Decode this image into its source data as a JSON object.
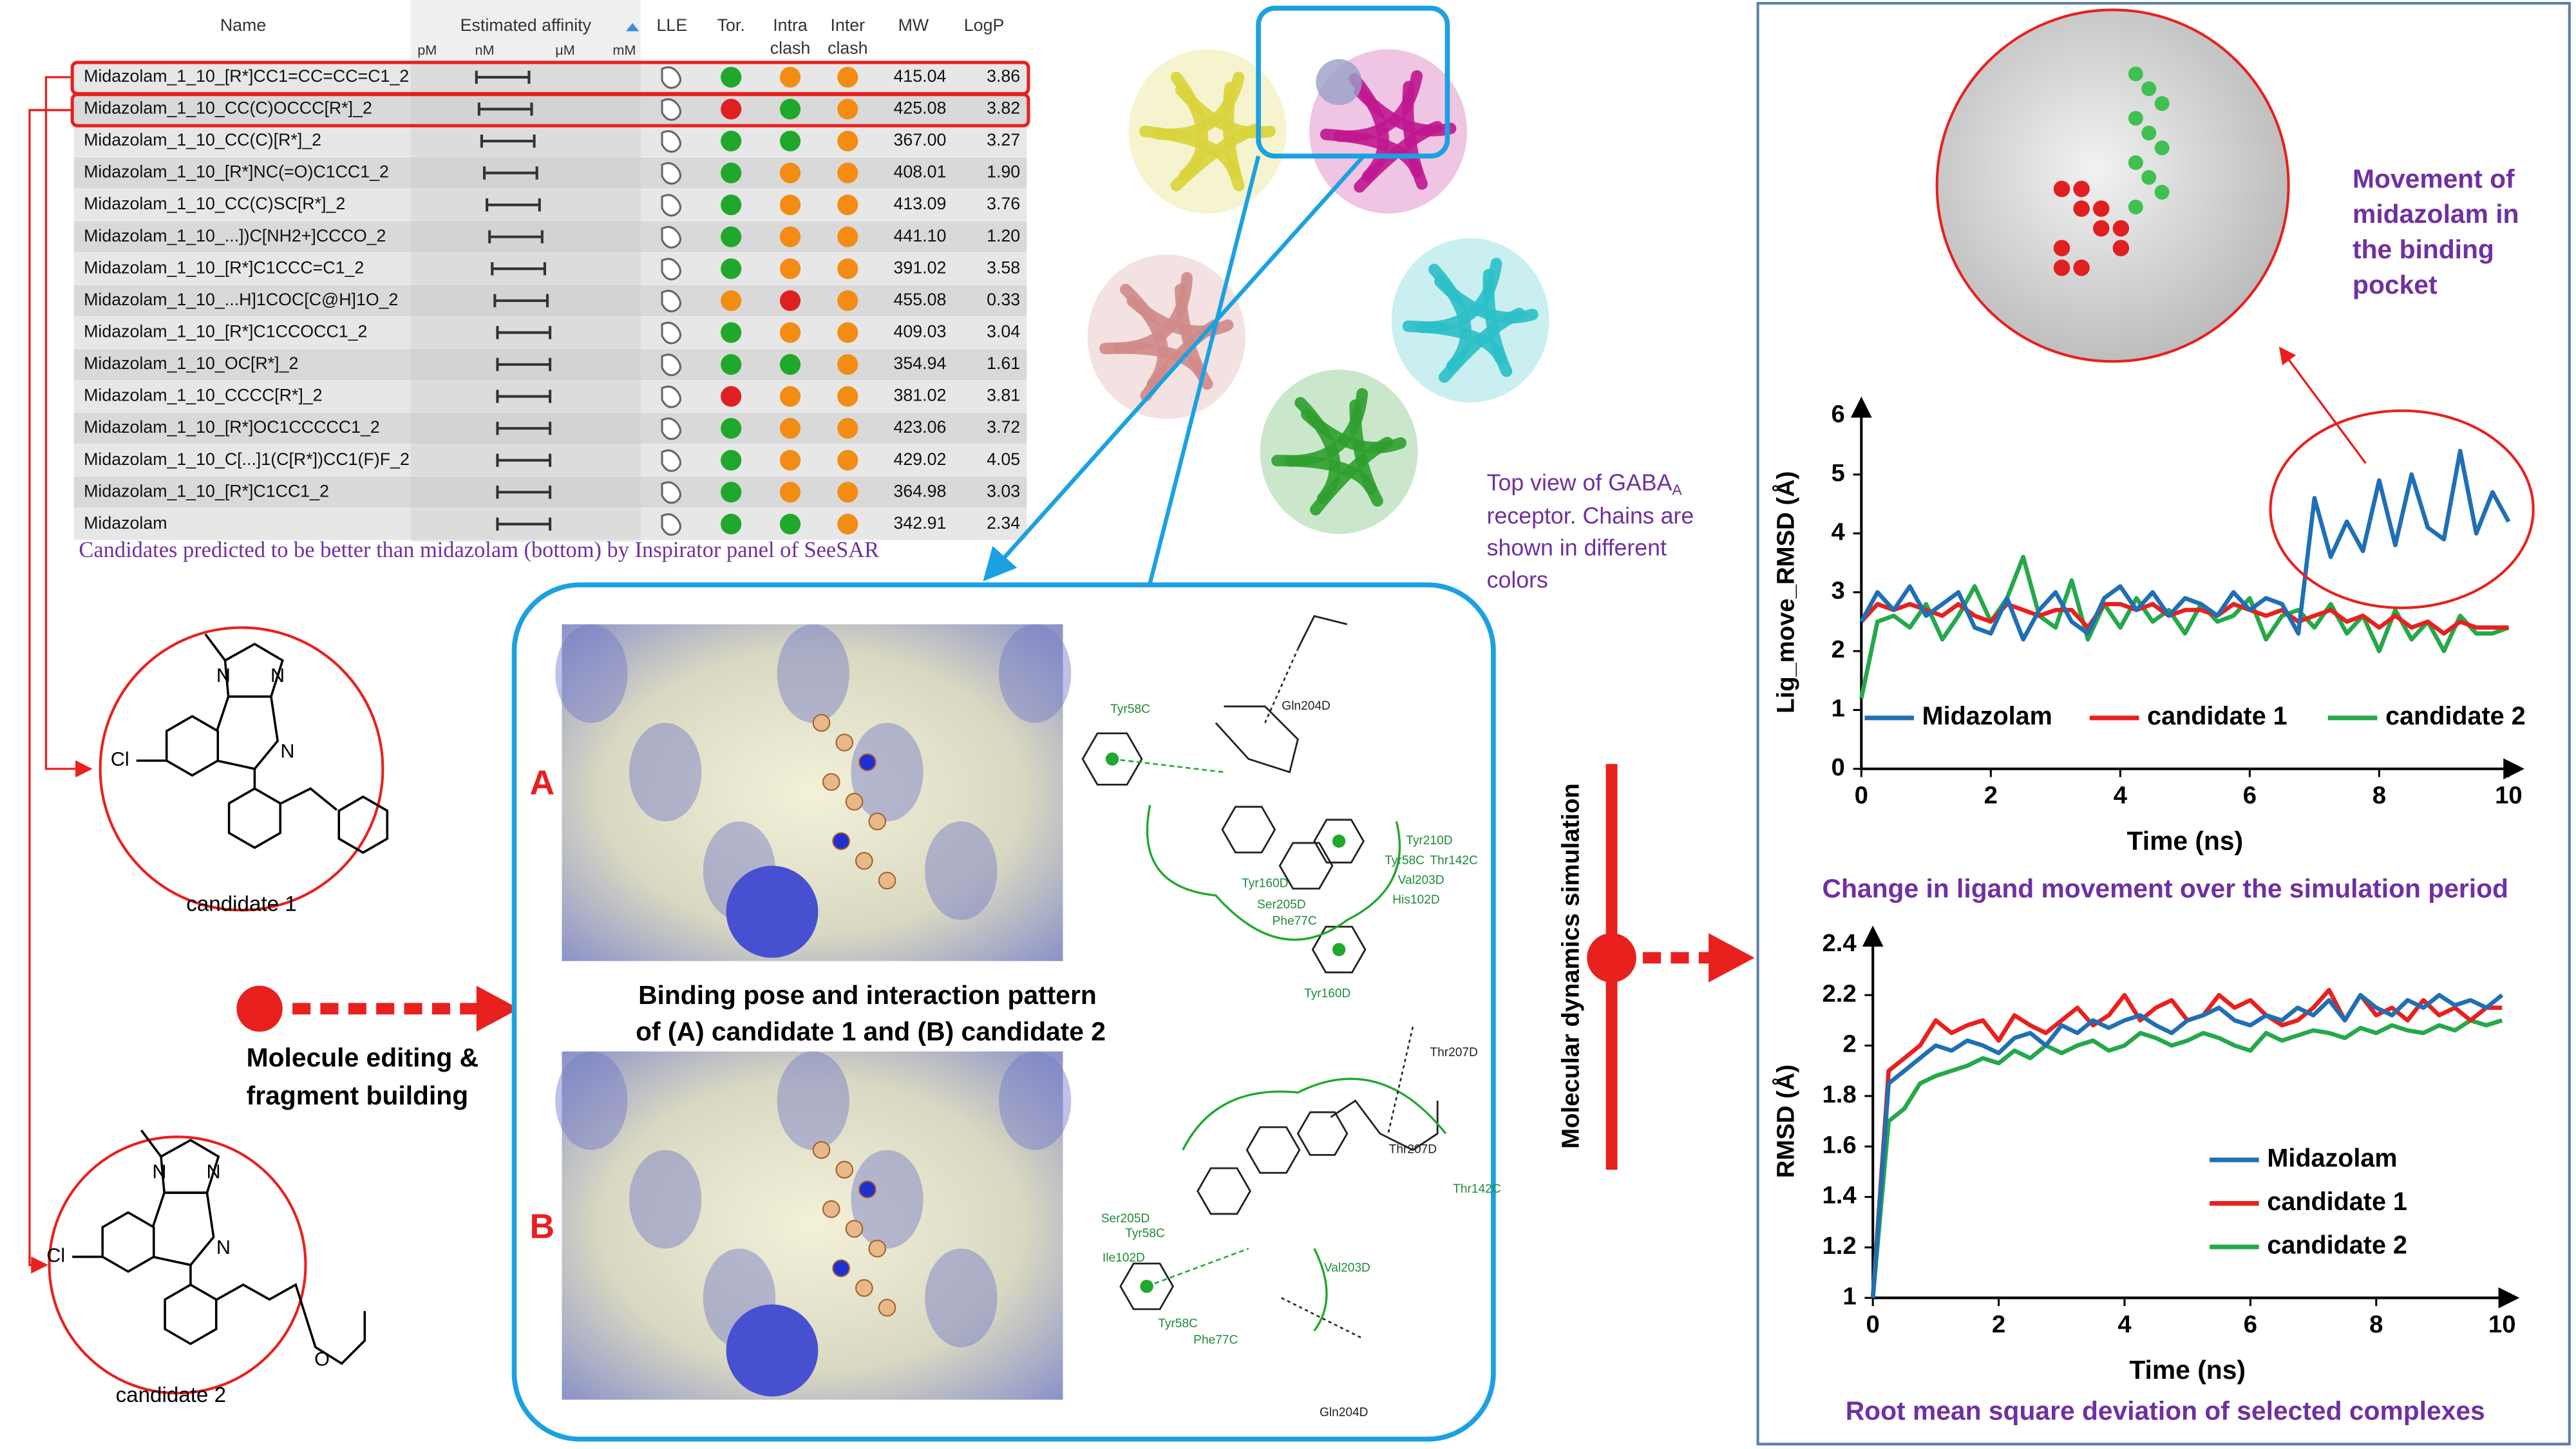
{
  "table": {
    "headers": {
      "name": "Name",
      "affinity": "Estimated affinity",
      "units": [
        "pM",
        "nM",
        "μM",
        "mM"
      ],
      "lle": "LLE",
      "tor": "Tor.",
      "intra": [
        "Intra",
        "clash"
      ],
      "inter": [
        "Inter",
        "clash"
      ],
      "mw": "MW",
      "logp": "LogP"
    },
    "rows": [
      {
        "name": "Midazolam_1_10_[R*]CC1=CC=CC=C1_2",
        "tor": "green",
        "intra": "orange",
        "inter": "orange",
        "mw": "415.04",
        "logp": "3.86"
      },
      {
        "name": "Midazolam_1_10_CC(C)OCCC[R*]_2",
        "tor": "red",
        "intra": "green",
        "inter": "orange",
        "mw": "425.08",
        "logp": "3.82"
      },
      {
        "name": "Midazolam_1_10_CC(C)[R*]_2",
        "tor": "green",
        "intra": "green",
        "inter": "orange",
        "mw": "367.00",
        "logp": "3.27"
      },
      {
        "name": "Midazolam_1_10_[R*]NC(=O)C1CC1_2",
        "tor": "green",
        "intra": "orange",
        "inter": "orange",
        "mw": "408.01",
        "logp": "1.90"
      },
      {
        "name": "Midazolam_1_10_CC(C)SC[R*]_2",
        "tor": "green",
        "intra": "orange",
        "inter": "orange",
        "mw": "413.09",
        "logp": "3.76"
      },
      {
        "name": "Midazolam_1_10_...])C[NH2+]CCCO_2",
        "tor": "green",
        "intra": "orange",
        "inter": "orange",
        "mw": "441.10",
        "logp": "1.20"
      },
      {
        "name": "Midazolam_1_10_[R*]C1CCC=C1_2",
        "tor": "green",
        "intra": "orange",
        "inter": "orange",
        "mw": "391.02",
        "logp": "3.58"
      },
      {
        "name": "Midazolam_1_10_...H]1COC[C@H]1O_2",
        "tor": "orange",
        "intra": "red",
        "inter": "orange",
        "mw": "455.08",
        "logp": "0.33"
      },
      {
        "name": "Midazolam_1_10_[R*]C1CCOCC1_2",
        "tor": "green",
        "intra": "orange",
        "inter": "orange",
        "mw": "409.03",
        "logp": "3.04"
      },
      {
        "name": "Midazolam_1_10_OC[R*]_2",
        "tor": "green",
        "intra": "green",
        "inter": "orange",
        "mw": "354.94",
        "logp": "1.61"
      },
      {
        "name": "Midazolam_1_10_CCCC[R*]_2",
        "tor": "red",
        "intra": "orange",
        "inter": "orange",
        "mw": "381.02",
        "logp": "3.81"
      },
      {
        "name": "Midazolam_1_10_[R*]OC1CCCCC1_2",
        "tor": "green",
        "intra": "orange",
        "inter": "orange",
        "mw": "423.06",
        "logp": "3.72"
      },
      {
        "name": "Midazolam_1_10_C[...]1(C[R*])CC1(F)F_2",
        "tor": "green",
        "intra": "orange",
        "inter": "orange",
        "mw": "429.02",
        "logp": "4.05"
      },
      {
        "name": "Midazolam_1_10_[R*]C1CC1_2",
        "tor": "green",
        "intra": "orange",
        "inter": "orange",
        "mw": "364.98",
        "logp": "3.03"
      },
      {
        "name": "Midazolam",
        "tor": "green",
        "intra": "green",
        "inter": "orange",
        "mw": "342.91",
        "logp": "2.34"
      }
    ],
    "caption": "Candidates predicted to be better than midazolam (bottom) by Inspirator panel of SeeSAR"
  },
  "structures": [
    {
      "label": "candidate 1",
      "atoms": [
        "N",
        "N",
        "Cl",
        "N"
      ]
    },
    {
      "label": "candidate 2",
      "atoms": [
        "N",
        "N",
        "Cl",
        "N",
        "O"
      ]
    }
  ],
  "protein": {
    "caption": [
      "Top view of GABA",
      "A",
      "receptor. Chains are",
      "shown in different",
      "colors"
    ]
  },
  "binding": {
    "title": [
      "Binding pose and interaction pattern",
      "of (A) candidate 1 and (B) candidate 2"
    ],
    "panels": [
      {
        "label": "A",
        "residues": [
          "Gln204D",
          "Tyr58C",
          "Tyr160D",
          "Tyr210D",
          "Tyr58C",
          "Thr142C",
          "Val203D",
          "His102D",
          "Ser205D",
          "Phe77C",
          "Tyr160D"
        ]
      },
      {
        "label": "B",
        "residues": [
          "Thr207D",
          "Thr207D",
          "Thr142C",
          "Ser205D",
          "Tyr58C",
          "Ile102D",
          "Tyr58C",
          "Phe77C",
          "Val203D",
          "Gln204D"
        ]
      }
    ]
  },
  "steps": {
    "editing": [
      "Molecule editing &",
      "fragment building"
    ],
    "md": "Molecular dynamics simulation"
  },
  "inset": {
    "caption": [
      "Movement of",
      "midazolam in",
      "the binding",
      "pocket"
    ]
  },
  "chart_data": [
    {
      "type": "line",
      "title": "Change in ligand movement over the simulation period",
      "x_label": "Time (ns)",
      "y_label": "Lig_move_RMSD (Å)",
      "x": [
        0,
        0.25,
        0.5,
        0.75,
        1,
        1.25,
        1.5,
        1.75,
        2,
        2.25,
        2.5,
        2.75,
        3,
        3.25,
        3.5,
        3.75,
        4,
        4.25,
        4.5,
        4.75,
        5,
        5.25,
        5.5,
        5.75,
        6,
        6.25,
        6.5,
        6.75,
        7,
        7.25,
        7.5,
        7.75,
        8,
        8.25,
        8.5,
        8.75,
        9,
        9.25,
        9.5,
        9.75,
        10
      ],
      "xlim": [
        0,
        10
      ],
      "xticks": [
        0,
        2,
        4,
        6,
        8,
        10
      ],
      "ylim": [
        0,
        6
      ],
      "yticks": [
        0,
        1,
        2,
        3,
        4,
        5,
        6
      ],
      "legend": "lower left",
      "series": [
        {
          "name": "Midazolam",
          "color": "#1f6fb5",
          "values": [
            2.5,
            3.0,
            2.7,
            3.1,
            2.6,
            2.8,
            3.0,
            2.4,
            2.3,
            2.9,
            2.2,
            2.7,
            3.0,
            2.5,
            2.3,
            2.9,
            3.1,
            2.7,
            3.0,
            2.6,
            2.9,
            2.8,
            2.6,
            3.0,
            2.7,
            2.9,
            2.8,
            2.3,
            4.6,
            3.6,
            4.2,
            3.7,
            4.9,
            3.8,
            5.0,
            4.1,
            3.9,
            5.4,
            4.0,
            4.7,
            4.2
          ]
        },
        {
          "name": "candidate 1",
          "color": "#e8201e",
          "values": [
            2.5,
            2.8,
            2.7,
            2.8,
            2.7,
            2.6,
            2.8,
            2.6,
            2.5,
            2.8,
            2.7,
            2.6,
            2.7,
            2.7,
            2.4,
            2.8,
            2.8,
            2.7,
            2.8,
            2.6,
            2.7,
            2.7,
            2.6,
            2.8,
            2.7,
            2.6,
            2.7,
            2.5,
            2.6,
            2.7,
            2.5,
            2.6,
            2.4,
            2.6,
            2.4,
            2.5,
            2.3,
            2.5,
            2.4,
            2.4,
            2.4
          ]
        },
        {
          "name": "candidate 2",
          "color": "#25a84a",
          "values": [
            1.2,
            2.5,
            2.6,
            2.4,
            2.8,
            2.2,
            2.6,
            3.1,
            2.5,
            2.9,
            3.6,
            2.6,
            2.4,
            3.2,
            2.2,
            2.8,
            2.4,
            2.9,
            2.5,
            2.7,
            2.3,
            2.8,
            2.5,
            2.6,
            2.9,
            2.2,
            2.6,
            2.7,
            2.4,
            2.8,
            2.3,
            2.6,
            2.0,
            2.7,
            2.2,
            2.5,
            2.0,
            2.6,
            2.3,
            2.3,
            2.4
          ]
        }
      ]
    },
    {
      "type": "line",
      "title": "Root mean square deviation of selected complexes",
      "x_label": "Time (ns)",
      "y_label": "RMSD (Å)",
      "x": [
        0,
        0.25,
        0.5,
        0.75,
        1,
        1.25,
        1.5,
        1.75,
        2,
        2.25,
        2.5,
        2.75,
        3,
        3.25,
        3.5,
        3.75,
        4,
        4.25,
        4.5,
        4.75,
        5,
        5.25,
        5.5,
        5.75,
        6,
        6.25,
        6.5,
        6.75,
        7,
        7.25,
        7.5,
        7.75,
        8,
        8.25,
        8.5,
        8.75,
        9,
        9.25,
        9.5,
        9.75,
        10
      ],
      "xlim": [
        0,
        10
      ],
      "xticks": [
        0,
        2,
        4,
        6,
        8,
        10
      ],
      "ylim": [
        1,
        2.4
      ],
      "yticks": [
        1,
        1.2,
        1.4,
        1.6,
        1.8,
        2,
        2.2,
        2.4
      ],
      "legend": "lower right",
      "series": [
        {
          "name": "Midazolam",
          "color": "#1f6fb5",
          "values": [
            1.0,
            1.85,
            1.9,
            1.95,
            2.0,
            1.98,
            2.02,
            2.0,
            1.97,
            2.03,
            2.05,
            2.0,
            2.08,
            2.05,
            2.1,
            2.07,
            2.1,
            2.12,
            2.08,
            2.05,
            2.1,
            2.12,
            2.15,
            2.1,
            2.08,
            2.12,
            2.1,
            2.15,
            2.12,
            2.18,
            2.1,
            2.2,
            2.15,
            2.12,
            2.18,
            2.15,
            2.2,
            2.16,
            2.18,
            2.15,
            2.2
          ]
        },
        {
          "name": "candidate 1",
          "color": "#e8201e",
          "values": [
            1.0,
            1.9,
            1.95,
            2.0,
            2.1,
            2.05,
            2.08,
            2.1,
            2.02,
            2.12,
            2.08,
            2.05,
            2.1,
            2.15,
            2.08,
            2.12,
            2.2,
            2.1,
            2.15,
            2.18,
            2.1,
            2.12,
            2.2,
            2.15,
            2.18,
            2.12,
            2.08,
            2.1,
            2.15,
            2.22,
            2.1,
            2.2,
            2.12,
            2.15,
            2.1,
            2.18,
            2.12,
            2.15,
            2.1,
            2.15,
            2.15
          ]
        },
        {
          "name": "candidate 2",
          "color": "#25a84a",
          "values": [
            1.0,
            1.7,
            1.75,
            1.85,
            1.88,
            1.9,
            1.92,
            1.95,
            1.93,
            1.98,
            1.95,
            2.0,
            1.97,
            2.0,
            2.02,
            1.98,
            2.0,
            2.05,
            2.03,
            2.0,
            2.02,
            2.05,
            2.03,
            2.0,
            1.98,
            2.05,
            2.02,
            2.04,
            2.06,
            2.05,
            2.03,
            2.07,
            2.05,
            2.08,
            2.06,
            2.05,
            2.08,
            2.06,
            2.1,
            2.08,
            2.1
          ]
        }
      ]
    }
  ]
}
